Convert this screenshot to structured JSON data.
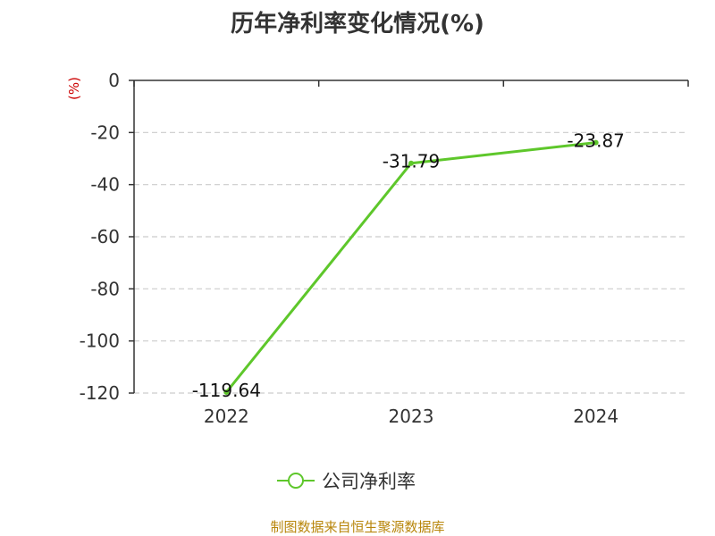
{
  "chart_data": {
    "type": "line",
    "title": "历年净利率变化情况(%)",
    "ylabel": "(%)",
    "x": [
      "2022",
      "2023",
      "2024"
    ],
    "series": [
      {
        "name": "公司净利率",
        "values": [
          -119.64,
          -31.79,
          -23.87
        ],
        "color": "#5ec72b"
      }
    ],
    "data_labels": [
      "-119.64",
      "-31.79",
      "-23.87"
    ],
    "ylim": [
      -120,
      0
    ],
    "yticks": [
      0,
      -20,
      -40,
      -60,
      -80,
      -100,
      -120
    ],
    "grid": true,
    "legend_position": "bottom"
  },
  "source": "制图数据来自恒生聚源数据库",
  "colors": {
    "unit": "#cc0000",
    "source": "#b8860b",
    "axis": "#333333",
    "grid": "#cccccc",
    "line": "#5ec72b"
  }
}
